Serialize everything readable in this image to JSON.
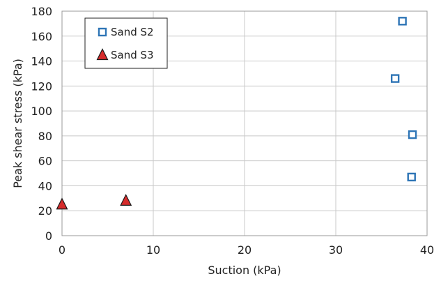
{
  "chart_data": {
    "type": "scatter",
    "title": "",
    "xlabel": "Suction (kPa)",
    "ylabel": "Peak shear stress (kPa)",
    "xlim": [
      0,
      40
    ],
    "ylim": [
      0,
      180
    ],
    "x_ticks": [
      0,
      10,
      20,
      30,
      40
    ],
    "y_ticks": [
      0,
      20,
      40,
      60,
      80,
      100,
      120,
      140,
      160,
      180
    ],
    "grid": true,
    "legend_position": "top-left",
    "series": [
      {
        "name": "Sand S2",
        "marker": "open-square",
        "color": "#2e75b6",
        "points": [
          {
            "x": 37.3,
            "y": 172
          },
          {
            "x": 36.5,
            "y": 126
          },
          {
            "x": 38.4,
            "y": 81
          },
          {
            "x": 38.3,
            "y": 47
          }
        ]
      },
      {
        "name": "Sand S3",
        "marker": "filled-triangle",
        "color": "#d62b2b",
        "points": [
          {
            "x": 0,
            "y": 25
          },
          {
            "x": 7,
            "y": 28
          }
        ]
      }
    ]
  }
}
